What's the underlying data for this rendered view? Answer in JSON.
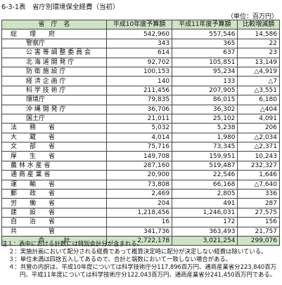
{
  "header": {
    "title": "6-3-1表　省庁別環境保全経費（当初）",
    "unit": "（単位：百万円）"
  },
  "table": {
    "columns": [
      "省　庁　名",
      "平成10年度予算額",
      "平成11年度予算額",
      "比較増減額"
    ],
    "rows": [
      [
        "総　　理　　府",
        "542,960",
        "557,546",
        "14,586"
      ],
      [
        "警察庁",
        "343",
        "365",
        "22"
      ],
      [
        "公 害 等 調 整 委 員 会",
        "614",
        "637",
        "23"
      ],
      [
        "北 海 道 開 発 庁",
        "92,702",
        "105,851",
        "13,149"
      ],
      [
        "防 衛 施 設 庁",
        "100,153",
        "95,234",
        "△4,919"
      ],
      [
        "経 済 企 画 庁",
        "140",
        "133",
        "△7"
      ],
      [
        "科 学 技 術 庁",
        "211,456",
        "207,905",
        "△3,551"
      ],
      [
        "環境庁",
        "79,835",
        "86,015",
        "6,180"
      ],
      [
        "沖 縄 開 発 庁",
        "36,706",
        "36,302",
        "△404"
      ],
      [
        "国土庁",
        "21,011",
        "25,102",
        "4,091"
      ],
      [
        "法　　務　　省",
        "5,032",
        "5,238",
        "206"
      ],
      [
        "大　　蔵　　省",
        "4,014",
        "1,980",
        "△2,034"
      ],
      [
        "文　　部　　省",
        "75,716",
        "73,345",
        "△2,371"
      ],
      [
        "厚　　生　　省",
        "149,708",
        "159,951",
        "10,243"
      ],
      [
        "農 林 水 産 省",
        "287,160",
        "519,487",
        "232,327"
      ],
      [
        "通 商 産 業 省",
        "20,900",
        "22,546",
        "1,646"
      ],
      [
        "運　　輸　　省",
        "73,808",
        "66,168",
        "△7,640"
      ],
      [
        "郵　　政　　省",
        "2,469",
        "2,805",
        "336"
      ],
      [
        "労　　働　　省",
        "204",
        "491",
        "287"
      ],
      [
        "建　　設　　省",
        "1,218,456",
        "1,246,031",
        "27,575"
      ],
      [
        "自　　治　　省",
        "16",
        "172",
        "156"
      ],
      [
        "共　　　　　管",
        "341,736",
        "363,493",
        "21,757"
      ]
    ],
    "total": [
      "合　　　計",
      "2,722,178",
      "3,021,254",
      "299,076"
    ]
  },
  "notes": [
    "注１：表中における計数には特別会計分が含まれる。",
    "２：実施計画において配分される経費であって概算決定時に配分が決定しない経費は除いている。",
    "３：単位未満は四捨五入してあるので、合計と端数において一致しない場合がある。",
    "４：共管の内訳は、平成10年度については科学技術庁分117,896百万円、通商産業省分223,840百万円、平成11年度については科学技術庁分122,043百万円、通商産業省分241,450百万円である。"
  ]
}
